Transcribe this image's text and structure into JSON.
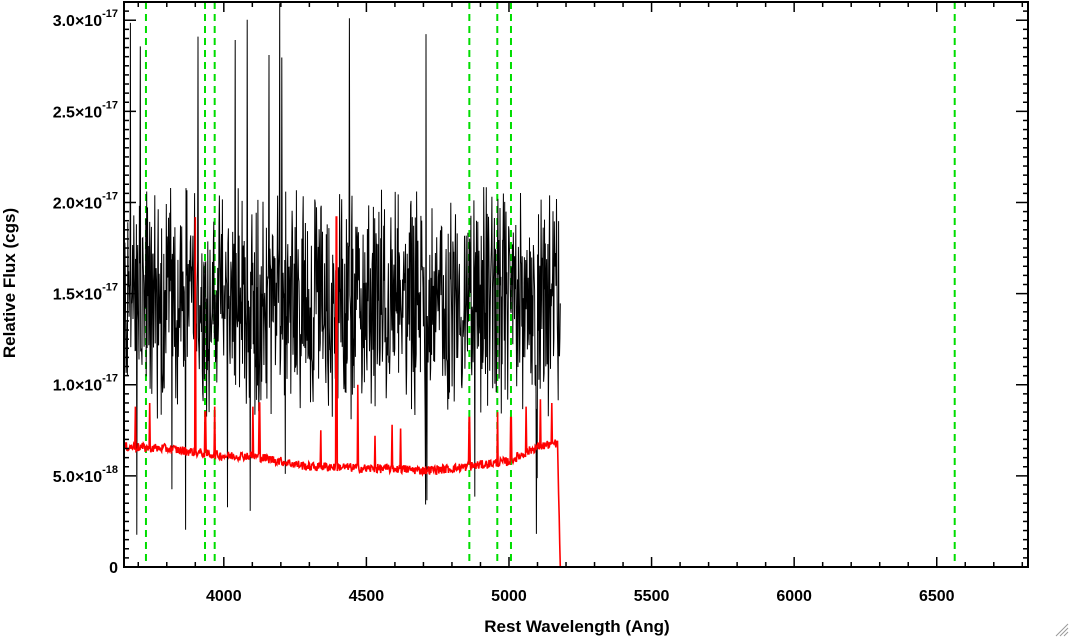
{
  "chart_data": {
    "type": "line",
    "xlabel": "Rest Wavelength (Ang)",
    "ylabel": "Relative Flux (cgs)",
    "xlim": [
      3650,
      6820
    ],
    "ylim": [
      0,
      3.1e-17
    ],
    "x_ticks": [
      {
        "value": 4000,
        "label": "4000"
      },
      {
        "value": 4500,
        "label": "4500"
      },
      {
        "value": 5000,
        "label": "5000"
      },
      {
        "value": 5500,
        "label": "5500"
      },
      {
        "value": 6000,
        "label": "6000"
      },
      {
        "value": 6500,
        "label": "6500"
      }
    ],
    "y_ticks": [
      {
        "value": 0,
        "mantissa": "0",
        "exponent": ""
      },
      {
        "value": 5e-18,
        "mantissa": "5.0×10",
        "exponent": "-18"
      },
      {
        "value": 1e-17,
        "mantissa": "1.0×10",
        "exponent": "-17"
      },
      {
        "value": 1.5e-17,
        "mantissa": "1.5×10",
        "exponent": "-17"
      },
      {
        "value": 2e-17,
        "mantissa": "2.0×10",
        "exponent": "-17"
      },
      {
        "value": 2.5e-17,
        "mantissa": "2.5×10",
        "exponent": "-17"
      },
      {
        "value": 3e-17,
        "mantissa": "3.0×10",
        "exponent": "-17"
      }
    ],
    "grid": false,
    "reference_lines": {
      "color": "#00dd00",
      "style": "dashed",
      "x": [
        3727,
        3934,
        3968,
        4861,
        4959,
        5007,
        6563
      ]
    },
    "series": [
      {
        "color": "#000000",
        "x_range": [
          3650,
          5180
        ],
        "approx_mean": 1.45e-17,
        "approx_scatter": 4e-18,
        "approx_min": 5e-19,
        "approx_max": 3.1e-17
      },
      {
        "color": "#ff0000",
        "points": [
          [
            3650,
            6.6e-18
          ],
          [
            3800,
            6.5e-18
          ],
          [
            3900,
            6.3e-18
          ],
          [
            4000,
            6.1e-18
          ],
          [
            4100,
            6.1e-18
          ],
          [
            4200,
            5.8e-18
          ],
          [
            4300,
            5.5e-18
          ],
          [
            4400,
            5.5e-18
          ],
          [
            4500,
            5.4e-18
          ],
          [
            4600,
            5.4e-18
          ],
          [
            4700,
            5.3e-18
          ],
          [
            4800,
            5.4e-18
          ],
          [
            4900,
            5.6e-18
          ],
          [
            5000,
            5.8e-18
          ],
          [
            5050,
            6.2e-18
          ],
          [
            5100,
            6.6e-18
          ],
          [
            5170,
            6.8e-18
          ],
          [
            5180,
            0.0
          ],
          [
            6820,
            0.0
          ]
        ],
        "spikes": [
          {
            "x": 3690,
            "y": 8.8e-18
          },
          {
            "x": 3740,
            "y": 9e-18
          },
          {
            "x": 3900,
            "y": 1.92e-17
          },
          {
            "x": 3935,
            "y": 8.5e-18
          },
          {
            "x": 3968,
            "y": 8.8e-18
          },
          {
            "x": 4102,
            "y": 8.8e-18
          },
          {
            "x": 4125,
            "y": 9e-18
          },
          {
            "x": 4340,
            "y": 7.5e-18
          },
          {
            "x": 4395,
            "y": 1.92e-17
          },
          {
            "x": 4470,
            "y": 1e-17
          },
          {
            "x": 4530,
            "y": 7.2e-18
          },
          {
            "x": 4590,
            "y": 7.8e-18
          },
          {
            "x": 4620,
            "y": 7.6e-18
          },
          {
            "x": 4861,
            "y": 8.2e-18
          },
          {
            "x": 4960,
            "y": 8.5e-18
          },
          {
            "x": 5007,
            "y": 8.2e-18
          },
          {
            "x": 5060,
            "y": 8.8e-18
          },
          {
            "x": 5110,
            "y": 9.2e-18
          },
          {
            "x": 5150,
            "y": 9e-18
          }
        ]
      }
    ]
  }
}
